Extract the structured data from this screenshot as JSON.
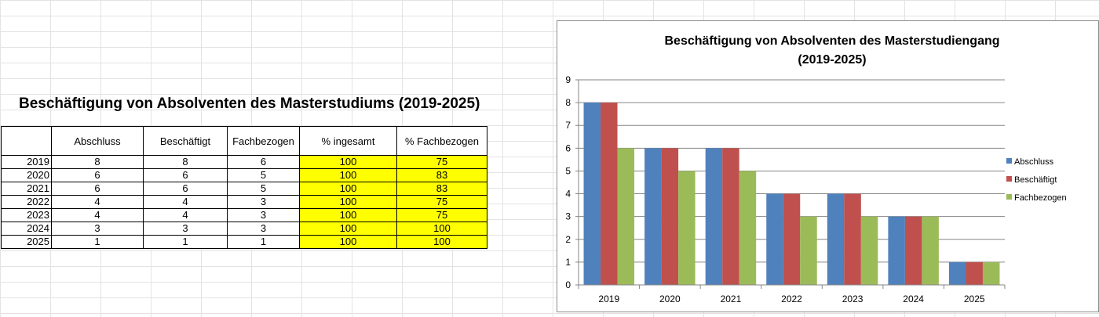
{
  "sheet_title": "Beschäftigung von Absolventen des Masterstudiums (2019-2025)",
  "table": {
    "headers": [
      "",
      "Abschluss",
      "Beschäftigt",
      "Fachbezogen",
      "% ingesamt",
      "% Fachbezogen"
    ],
    "rows": [
      [
        "2019",
        "8",
        "8",
        "6",
        "100",
        "75"
      ],
      [
        "2020",
        "6",
        "6",
        "5",
        "100",
        "83"
      ],
      [
        "2021",
        "6",
        "6",
        "5",
        "100",
        "83"
      ],
      [
        "2022",
        "4",
        "4",
        "3",
        "100",
        "75"
      ],
      [
        "2023",
        "4",
        "4",
        "3",
        "100",
        "75"
      ],
      [
        "2024",
        "3",
        "3",
        "3",
        "100",
        "100"
      ],
      [
        "2025",
        "1",
        "1",
        "1",
        "100",
        "100"
      ]
    ],
    "highlight_color": "#ffff00"
  },
  "chart_data": {
    "type": "bar",
    "title_lines": [
      "Beschäftigung von Absolventen des Masterstudiengang",
      "(2019-2025)"
    ],
    "categories": [
      "2019",
      "2020",
      "2021",
      "2022",
      "2023",
      "2024",
      "2025"
    ],
    "series": [
      {
        "name": "Abschluss",
        "values": [
          8,
          6,
          6,
          4,
          4,
          3,
          1
        ],
        "color": "#4f81bd"
      },
      {
        "name": "Beschäftigt",
        "values": [
          8,
          6,
          6,
          4,
          4,
          3,
          1
        ],
        "color": "#c0504d"
      },
      {
        "name": "Fachbezogen",
        "values": [
          6,
          5,
          5,
          3,
          3,
          3,
          1
        ],
        "color": "#9bbb59"
      }
    ],
    "ylim": [
      0,
      9
    ],
    "yticks": [
      "0",
      "1",
      "2",
      "3",
      "4",
      "5",
      "6",
      "7",
      "8",
      "9"
    ],
    "grid": true,
    "legend_position": "right"
  }
}
